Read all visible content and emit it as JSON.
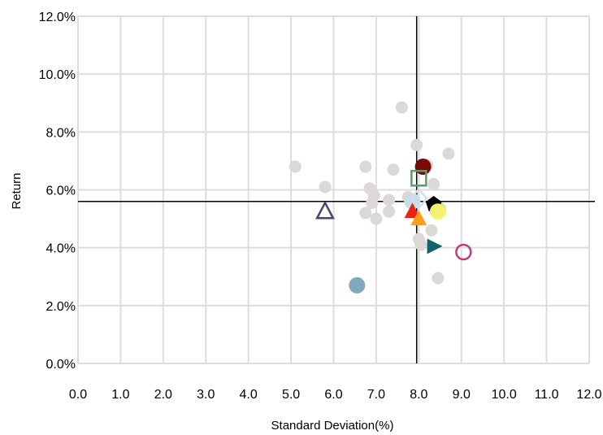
{
  "chart_data": {
    "type": "scatter",
    "xlabel": "Standard Deviation(%)",
    "ylabel": "Return",
    "xlim": [
      0,
      12
    ],
    "ylim": [
      0,
      12
    ],
    "x_ticks": [
      "0.0",
      "1.0",
      "2.0",
      "3.0",
      "4.0",
      "5.0",
      "6.0",
      "7.0",
      "8.0",
      "9.0",
      "10.0",
      "11.0",
      "12.0"
    ],
    "y_ticks": [
      "0.0%",
      "2.0%",
      "4.0%",
      "6.0%",
      "8.0%",
      "10.0%",
      "12.0%"
    ],
    "grid": true,
    "reference_lines": {
      "x": 7.95,
      "y": 5.6
    },
    "background_points": [
      {
        "x": 5.1,
        "y": 6.8
      },
      {
        "x": 5.8,
        "y": 6.1
      },
      {
        "x": 6.75,
        "y": 6.8
      },
      {
        "x": 6.85,
        "y": 6.05
      },
      {
        "x": 6.9,
        "y": 5.55
      },
      {
        "x": 6.95,
        "y": 5.8
      },
      {
        "x": 7.0,
        "y": 5.0
      },
      {
        "x": 6.75,
        "y": 5.2
      },
      {
        "x": 7.3,
        "y": 5.65
      },
      {
        "x": 7.3,
        "y": 5.25
      },
      {
        "x": 7.4,
        "y": 6.7
      },
      {
        "x": 7.6,
        "y": 8.85
      },
      {
        "x": 7.95,
        "y": 7.55
      },
      {
        "x": 8.2,
        "y": 6.85
      },
      {
        "x": 8.35,
        "y": 6.2
      },
      {
        "x": 8.7,
        "y": 7.25
      },
      {
        "x": 8.3,
        "y": 4.6
      },
      {
        "x": 8.0,
        "y": 4.3
      },
      {
        "x": 8.05,
        "y": 4.1
      },
      {
        "x": 8.45,
        "y": 2.95
      },
      {
        "x": 7.75,
        "y": 5.75
      },
      {
        "x": 8.5,
        "y": 5.35
      }
    ],
    "highlight_points": [
      {
        "x": 8.1,
        "y": 6.8,
        "marker": "circle",
        "color": "#7a0a0a",
        "filled": true
      },
      {
        "x": 8.0,
        "y": 6.4,
        "marker": "square",
        "color": "#5a9e6f",
        "filled": false
      },
      {
        "x": 7.85,
        "y": 5.6,
        "marker": "circle",
        "color": "#c7dde8",
        "filled": true
      },
      {
        "x": 8.0,
        "y": 5.7,
        "marker": "diamond",
        "color": "#cfe0ea",
        "filled": false
      },
      {
        "x": 8.35,
        "y": 5.5,
        "marker": "pentagon",
        "color": "#000000",
        "filled": true
      },
      {
        "x": 8.45,
        "y": 5.25,
        "marker": "circle",
        "color": "#f2f270",
        "filled": true
      },
      {
        "x": 7.85,
        "y": 5.25,
        "marker": "triangle-up",
        "color": "#e8230f",
        "filled": true
      },
      {
        "x": 8.0,
        "y": 5.0,
        "marker": "triangle-up",
        "color": "#f5a21a",
        "filled": true
      },
      {
        "x": 5.8,
        "y": 5.25,
        "marker": "triangle-up",
        "color": "#4c4372",
        "filled": false
      },
      {
        "x": 8.35,
        "y": 4.05,
        "marker": "triangle-right",
        "color": "#10646c",
        "filled": true
      },
      {
        "x": 9.05,
        "y": 3.85,
        "marker": "circle",
        "color": "#c43a78",
        "filled": false
      },
      {
        "x": 6.55,
        "y": 2.7,
        "marker": "circle",
        "color": "#80a9be",
        "filled": true
      }
    ],
    "background_color": "#dcd8d6",
    "grid_color": "#dddddd",
    "reference_line_color": "#000000"
  }
}
